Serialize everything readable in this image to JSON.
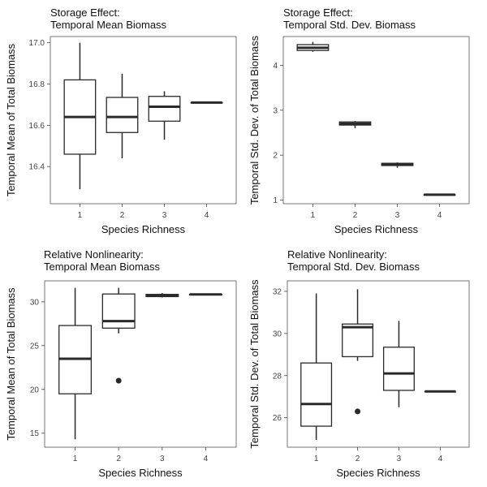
{
  "chart_data": [
    {
      "type": "box",
      "title_line1": "Storage Effect:",
      "title_line2": "Temporal Mean Biomass",
      "xlabel": "Species Richness",
      "ylabel": "Temporal Mean of Total Biomass",
      "categories": [
        "1",
        "2",
        "3",
        "4"
      ],
      "ylim": [
        16.22,
        17.03
      ],
      "yticks": [
        16.4,
        16.6,
        16.8,
        17.0
      ],
      "ytick_labels": [
        "16.4",
        "16.6",
        "16.8",
        "17.0"
      ],
      "boxes": [
        {
          "category": "1",
          "min": 16.29,
          "q1": 16.46,
          "median": 16.64,
          "q3": 16.82,
          "max": 17.0,
          "outliers": []
        },
        {
          "category": "2",
          "min": 16.44,
          "q1": 16.565,
          "median": 16.64,
          "q3": 16.735,
          "max": 16.85,
          "outliers": []
        },
        {
          "category": "3",
          "min": 16.53,
          "q1": 16.62,
          "median": 16.69,
          "q3": 16.74,
          "max": 16.765,
          "outliers": []
        },
        {
          "category": "4",
          "min": 16.71,
          "q1": 16.71,
          "median": 16.71,
          "q3": 16.71,
          "max": 16.71,
          "outliers": []
        }
      ],
      "grid": false
    },
    {
      "type": "box",
      "title_line1": "Storage Effect:",
      "title_line2": "Temporal Std. Dev. Biomass",
      "xlabel": "Species Richness",
      "ylabel": "Temporal Std. Dev. of Total Biomass",
      "categories": [
        "1",
        "2",
        "3",
        "4"
      ],
      "ylim": [
        0.92,
        4.64
      ],
      "yticks": [
        1,
        2,
        3,
        4
      ],
      "ytick_labels": [
        "1",
        "2",
        "3",
        "4"
      ],
      "boxes": [
        {
          "category": "1",
          "min": 4.3,
          "q1": 4.33,
          "median": 4.39,
          "q3": 4.46,
          "max": 4.52,
          "outliers": []
        },
        {
          "category": "2",
          "min": 2.6,
          "q1": 2.67,
          "median": 2.7,
          "q3": 2.74,
          "max": 2.76,
          "outliers": []
        },
        {
          "category": "3",
          "min": 1.72,
          "q1": 1.77,
          "median": 1.79,
          "q3": 1.82,
          "max": 1.84,
          "outliers": []
        },
        {
          "category": "4",
          "min": 1.12,
          "q1": 1.12,
          "median": 1.12,
          "q3": 1.12,
          "max": 1.12,
          "outliers": []
        }
      ],
      "grid": false
    },
    {
      "type": "box",
      "title_line1": "Relative Nonlinearity:",
      "title_line2": "Temporal Mean Biomass",
      "xlabel": "Species Richness",
      "ylabel": "Temporal Mean of Total Biomass",
      "categories": [
        "1",
        "2",
        "3",
        "4"
      ],
      "ylim": [
        13.4,
        32.4
      ],
      "yticks": [
        15,
        20,
        25,
        30
      ],
      "ytick_labels": [
        "15",
        "20",
        "25",
        "30"
      ],
      "boxes": [
        {
          "category": "1",
          "min": 14.3,
          "q1": 19.5,
          "median": 23.5,
          "q3": 27.3,
          "max": 31.6,
          "outliers": []
        },
        {
          "category": "2",
          "min": 26.4,
          "q1": 27.0,
          "median": 27.8,
          "q3": 30.9,
          "max": 31.6,
          "outliers": [
            21.0
          ]
        },
        {
          "category": "3",
          "min": 30.5,
          "q1": 30.6,
          "median": 30.75,
          "q3": 30.85,
          "max": 31.0,
          "outliers": []
        },
        {
          "category": "4",
          "min": 30.85,
          "q1": 30.85,
          "median": 30.85,
          "q3": 30.85,
          "max": 30.85,
          "outliers": []
        }
      ],
      "grid": false
    },
    {
      "type": "box",
      "title_line1": "Relative Nonlinearity:",
      "title_line2": "Temporal Std. Dev. Biomass",
      "xlabel": "Species Richness",
      "ylabel": "Temporal Std. Dev. of Total Biomass",
      "categories": [
        "1",
        "2",
        "3",
        "4"
      ],
      "ylim": [
        24.6,
        32.5
      ],
      "yticks": [
        26,
        28,
        30,
        32
      ],
      "ytick_labels": [
        "26",
        "28",
        "30",
        "32"
      ],
      "boxes": [
        {
          "category": "1",
          "min": 24.95,
          "q1": 25.6,
          "median": 26.65,
          "q3": 28.6,
          "max": 31.9,
          "outliers": []
        },
        {
          "category": "2",
          "min": 28.7,
          "q1": 28.9,
          "median": 30.3,
          "q3": 30.45,
          "max": 32.1,
          "outliers": [
            26.3
          ]
        },
        {
          "category": "3",
          "min": 26.5,
          "q1": 27.3,
          "median": 28.1,
          "q3": 29.35,
          "max": 30.6,
          "outliers": []
        },
        {
          "category": "4",
          "min": 27.25,
          "q1": 27.25,
          "median": 27.25,
          "q3": 27.25,
          "max": 27.25,
          "outliers": []
        }
      ],
      "grid": false
    }
  ]
}
